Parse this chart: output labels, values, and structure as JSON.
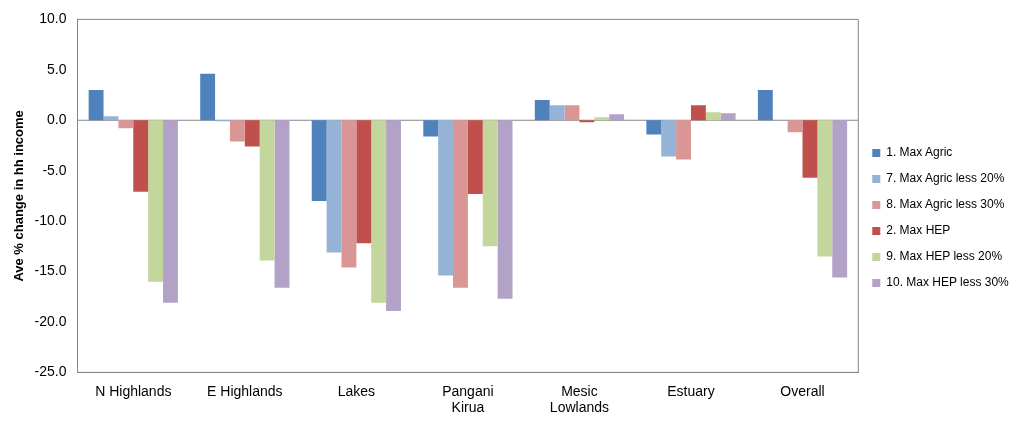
{
  "chart_data": {
    "type": "bar",
    "ylabel": "Ave % change in hh income",
    "categories": [
      "N Highlands",
      "E Highlands",
      "Lakes",
      "Pangani Kirua",
      "Mesic Lowlands",
      "Estuary",
      "Overall"
    ],
    "series": [
      {
        "name": "1. Max Agric",
        "color": "#4f81bd",
        "values": [
          3.0,
          4.6,
          -8.0,
          -1.6,
          2.0,
          -1.4,
          3.0
        ]
      },
      {
        "name": "7. Max Agric less 20%",
        "color": "#95b3d7",
        "values": [
          0.4,
          -0.1,
          -13.1,
          -15.4,
          1.5,
          -3.6,
          0.0
        ]
      },
      {
        "name": "8. Max Agric less 30%",
        "color": "#da9694",
        "values": [
          -0.8,
          -2.1,
          -14.6,
          -16.6,
          1.5,
          -3.9,
          -1.2
        ]
      },
      {
        "name": "2. Max HEP",
        "color": "#c0504d",
        "values": [
          -7.1,
          -2.6,
          -12.2,
          -7.3,
          -0.2,
          1.5,
          -5.7
        ]
      },
      {
        "name": "9. Max HEP less 20%",
        "color": "#c3d69b",
        "values": [
          -16.0,
          -13.9,
          -18.1,
          -12.5,
          0.3,
          0.8,
          -13.5
        ]
      },
      {
        "name": "10. Max HEP less 30%",
        "color": "#b3a2c7",
        "values": [
          -18.1,
          -16.6,
          -18.9,
          -17.7,
          0.6,
          0.7,
          -15.6
        ]
      }
    ],
    "ylim": [
      -25,
      10
    ],
    "yticks": [
      {
        "value": -25,
        "label": "-25.0"
      },
      {
        "value": -20,
        "label": "-20.0"
      },
      {
        "value": -15,
        "label": "-15.0"
      },
      {
        "value": -10,
        "label": "-10.0"
      },
      {
        "value": -5,
        "label": "-5.0"
      },
      {
        "value": 0,
        "label": "0.0"
      },
      {
        "value": 5,
        "label": "5.0"
      },
      {
        "value": 10,
        "label": "10.0"
      }
    ],
    "ref_lines": [
      {
        "axis": "y",
        "value": 0,
        "color": "#868686"
      }
    ],
    "grid": false,
    "legend": "right"
  }
}
